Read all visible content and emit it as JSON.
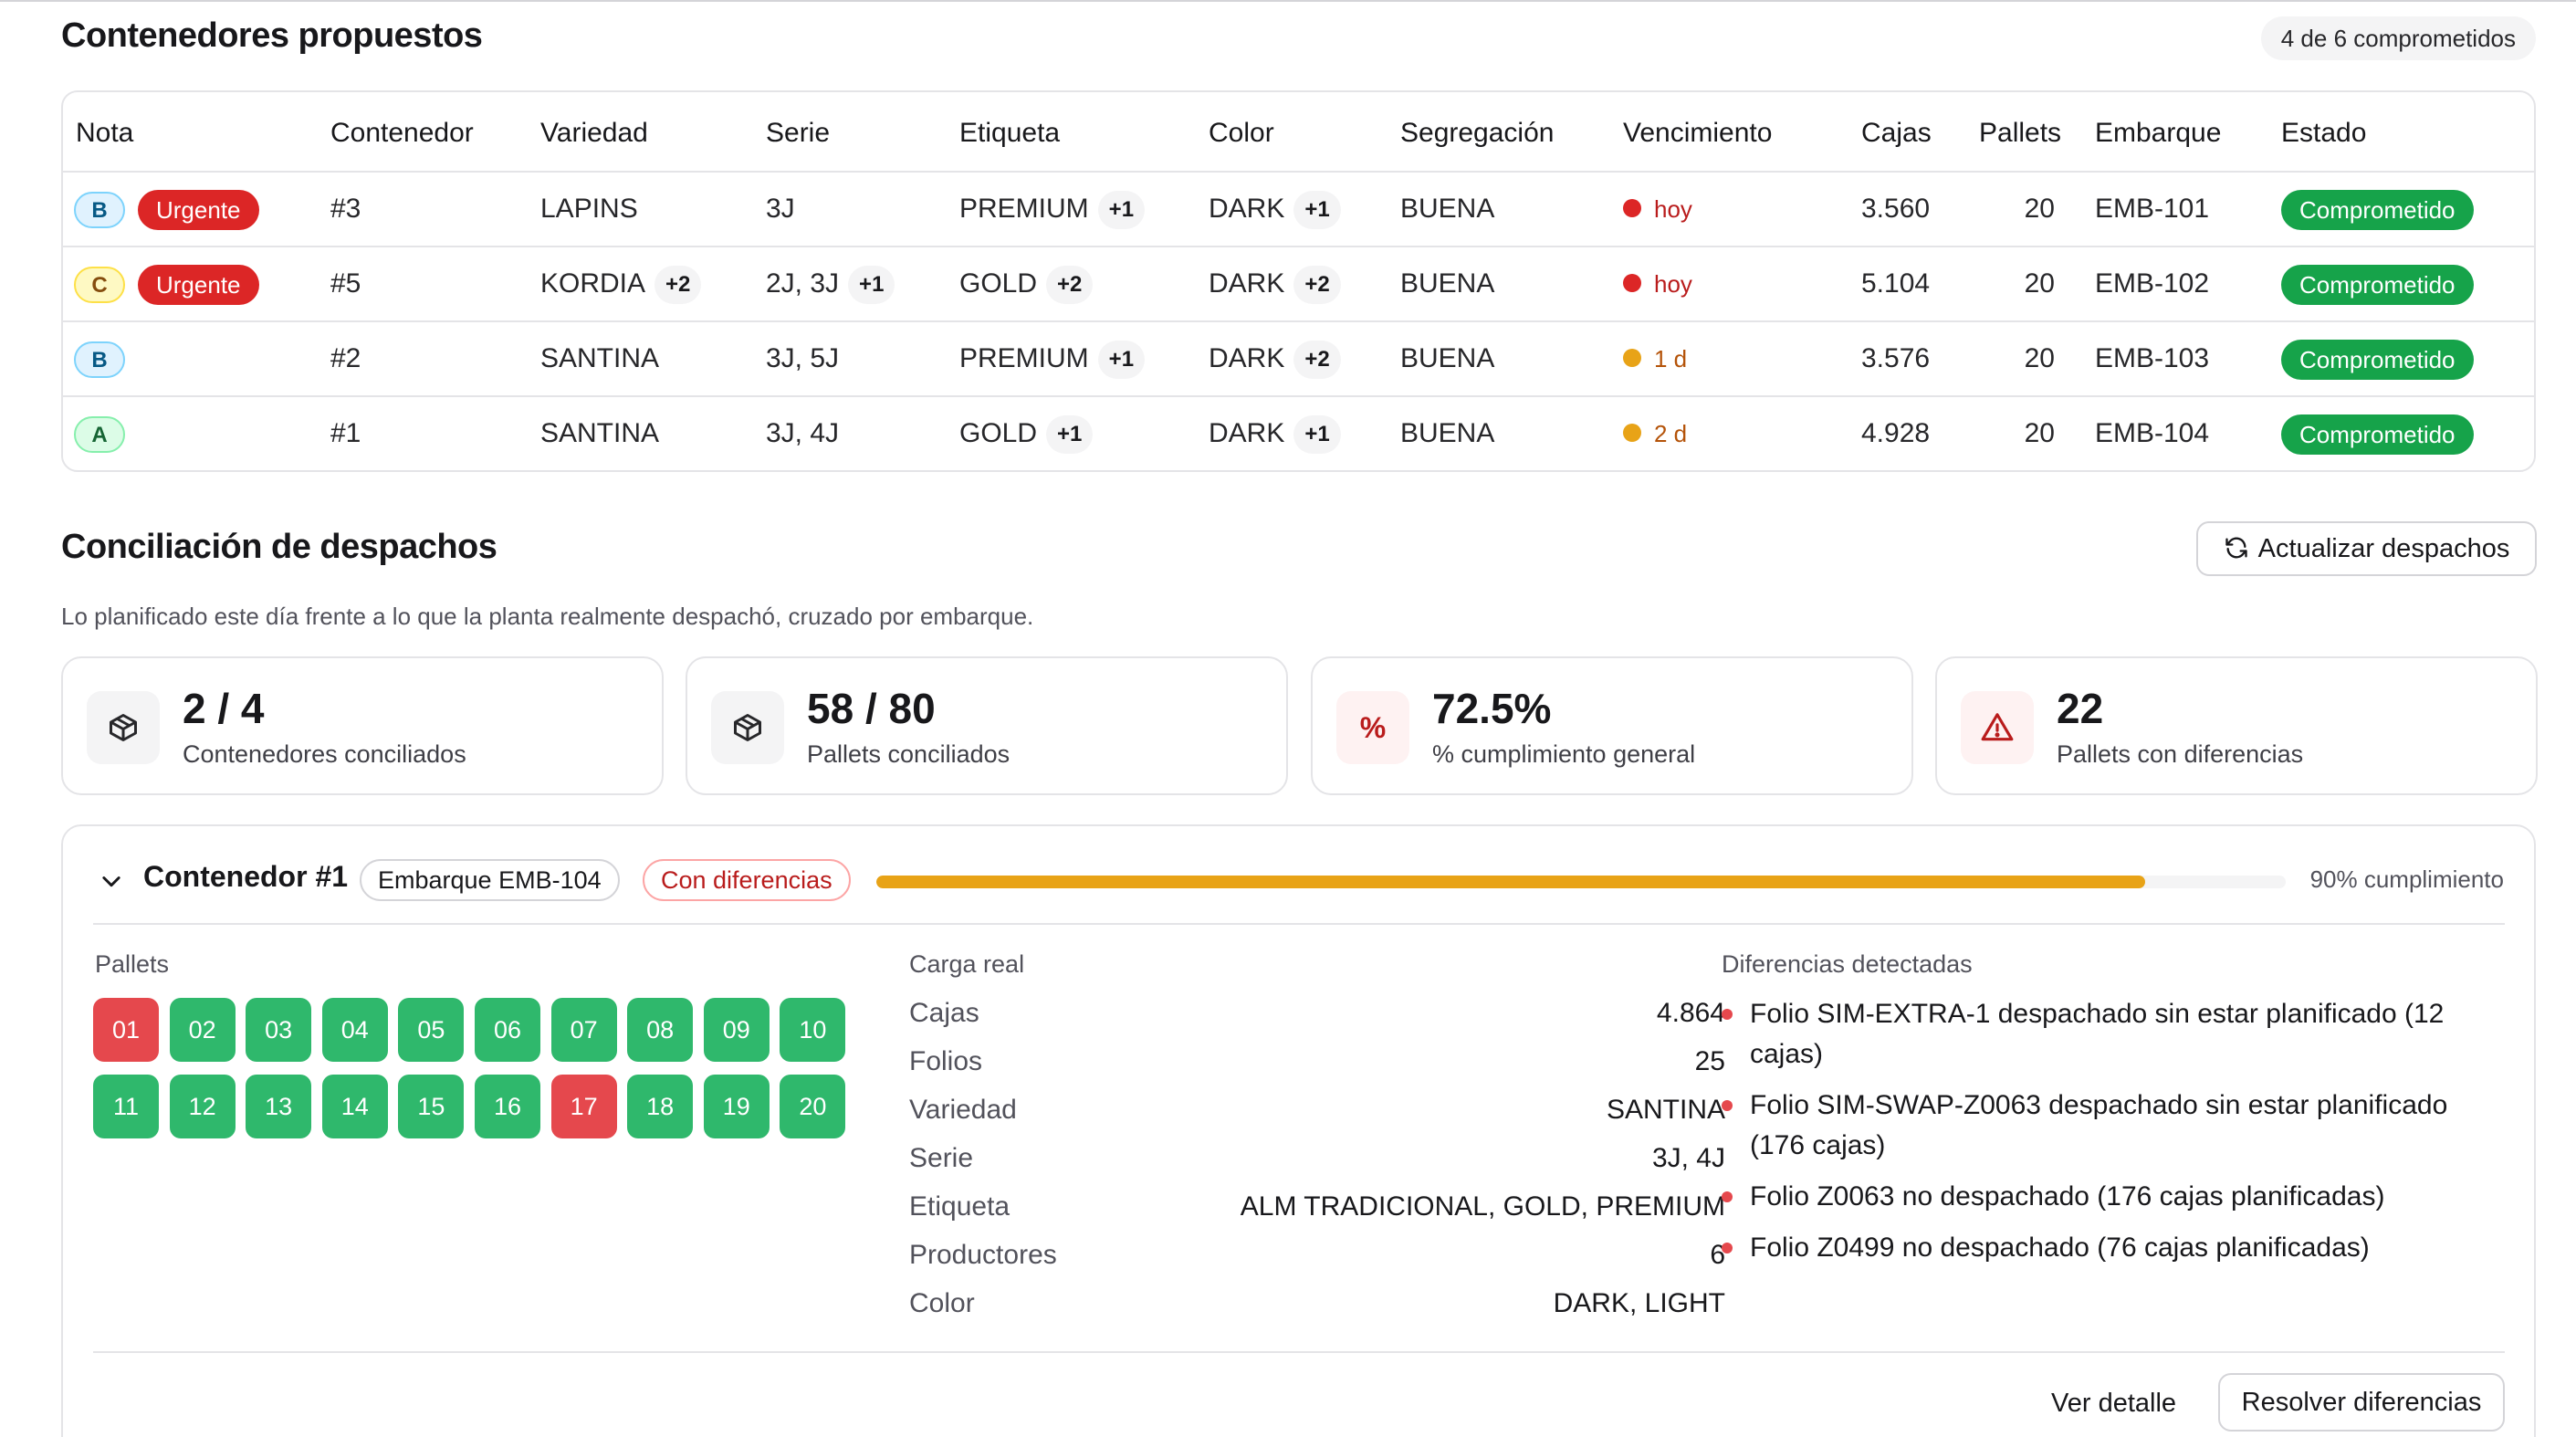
{
  "proposed": {
    "title": "Contenedores propuestos",
    "count_badge": "4 de 6 comprometidos",
    "columns": [
      "Nota",
      "Contenedor",
      "Variedad",
      "Serie",
      "Etiqueta",
      "Color",
      "Segregación",
      "Vencimiento",
      "Cajas",
      "Pallets",
      "Embarque",
      "Estado"
    ],
    "rows": [
      {
        "grade": "B",
        "urgent": "Urgente",
        "container": "#3",
        "variety": "LAPINS",
        "variety_more": "",
        "serie": "3J",
        "serie_more": "",
        "label": "PREMIUM",
        "label_more": "+1",
        "color": "DARK",
        "color_more": "+1",
        "segregation": "BUENA",
        "due": "hoy",
        "cajas": "3.560",
        "pallets": "20",
        "embarque": "EMB-101",
        "estado": "Comprometido"
      },
      {
        "grade": "C",
        "urgent": "Urgente",
        "container": "#5",
        "variety": "KORDIA",
        "variety_more": "+2",
        "serie": "2J, 3J",
        "serie_more": "+1",
        "label": "GOLD",
        "label_more": "+2",
        "color": "DARK",
        "color_more": "+2",
        "segregation": "BUENA",
        "due": "hoy",
        "cajas": "5.104",
        "pallets": "20",
        "embarque": "EMB-102",
        "estado": "Comprometido"
      },
      {
        "grade": "B",
        "urgent": "",
        "container": "#2",
        "variety": "SANTINA",
        "variety_more": "",
        "serie": "3J, 5J",
        "serie_more": "",
        "label": "PREMIUM",
        "label_more": "+1",
        "color": "DARK",
        "color_more": "+2",
        "segregation": "BUENA",
        "due": "1 d",
        "cajas": "3.576",
        "pallets": "20",
        "embarque": "EMB-103",
        "estado": "Comprometido"
      },
      {
        "grade": "A",
        "urgent": "",
        "container": "#1",
        "variety": "SANTINA",
        "variety_more": "",
        "serie": "3J, 4J",
        "serie_more": "",
        "label": "GOLD",
        "label_more": "+1",
        "color": "DARK",
        "color_more": "+1",
        "segregation": "BUENA",
        "due": "2 d",
        "cajas": "4.928",
        "pallets": "20",
        "embarque": "EMB-104",
        "estado": "Comprometido"
      }
    ],
    "colors": {
      "due_today": "#dc2626",
      "due_soon": "#e8a317",
      "committed": "#16a34a",
      "urgent": "#dc2626"
    }
  },
  "reconciliation": {
    "title": "Conciliación de despachos",
    "refresh_label": "Actualizar despachos",
    "subtitle": "Lo planificado este día frente a lo que la planta realmente despachó, cruzado por embarque.",
    "kpis": [
      {
        "value": "2 / 4",
        "label": "Contenedores conciliados",
        "icon": "box-icon"
      },
      {
        "value": "58 / 80",
        "label": "Pallets conciliados",
        "icon": "box-icon"
      },
      {
        "value": "72.5%",
        "label": "% cumplimiento general",
        "icon": "percent-icon",
        "symbol": "%"
      },
      {
        "value": "22",
        "label": "Pallets con diferencias",
        "icon": "warning-icon"
      }
    ],
    "container": {
      "title": "Contenedor #1",
      "shipment": "Embarque EMB-104",
      "status": "Con diferencias",
      "progress": 0.9,
      "progress_label": "90% cumplimiento",
      "pallets_label": "Pallets",
      "pallets": [
        {
          "n": "01",
          "ok": false
        },
        {
          "n": "02",
          "ok": true
        },
        {
          "n": "03",
          "ok": true
        },
        {
          "n": "04",
          "ok": true
        },
        {
          "n": "05",
          "ok": true
        },
        {
          "n": "06",
          "ok": true
        },
        {
          "n": "07",
          "ok": true
        },
        {
          "n": "08",
          "ok": true
        },
        {
          "n": "09",
          "ok": true
        },
        {
          "n": "10",
          "ok": true
        },
        {
          "n": "11",
          "ok": true
        },
        {
          "n": "12",
          "ok": true
        },
        {
          "n": "13",
          "ok": true
        },
        {
          "n": "14",
          "ok": true
        },
        {
          "n": "15",
          "ok": true
        },
        {
          "n": "16",
          "ok": true
        },
        {
          "n": "17",
          "ok": false
        },
        {
          "n": "18",
          "ok": true
        },
        {
          "n": "19",
          "ok": true
        },
        {
          "n": "20",
          "ok": true
        }
      ],
      "load_label": "Carga real",
      "load": [
        {
          "k": "Cajas",
          "v": "4.864"
        },
        {
          "k": "Folios",
          "v": "25"
        },
        {
          "k": "Variedad",
          "v": "SANTINA"
        },
        {
          "k": "Serie",
          "v": "3J, 4J"
        },
        {
          "k": "Etiqueta",
          "v": "ALM TRADICIONAL, GOLD, PREMIUM"
        },
        {
          "k": "Productores",
          "v": "6"
        },
        {
          "k": "Color",
          "v": "DARK, LIGHT"
        }
      ],
      "diffs_label": "Diferencias detectadas",
      "diffs": [
        "Folio SIM-EXTRA-1 despachado sin estar planificado (12 cajas)",
        "Folio SIM-SWAP-Z0063 despachado sin estar planificado (176 cajas)",
        "Folio Z0063 no despachado (176 cajas planificadas)",
        "Folio Z0499 no despachado (76 cajas planificadas)"
      ],
      "detail_label": "Ver detalle",
      "resolve_label": "Resolver diferencias"
    }
  }
}
